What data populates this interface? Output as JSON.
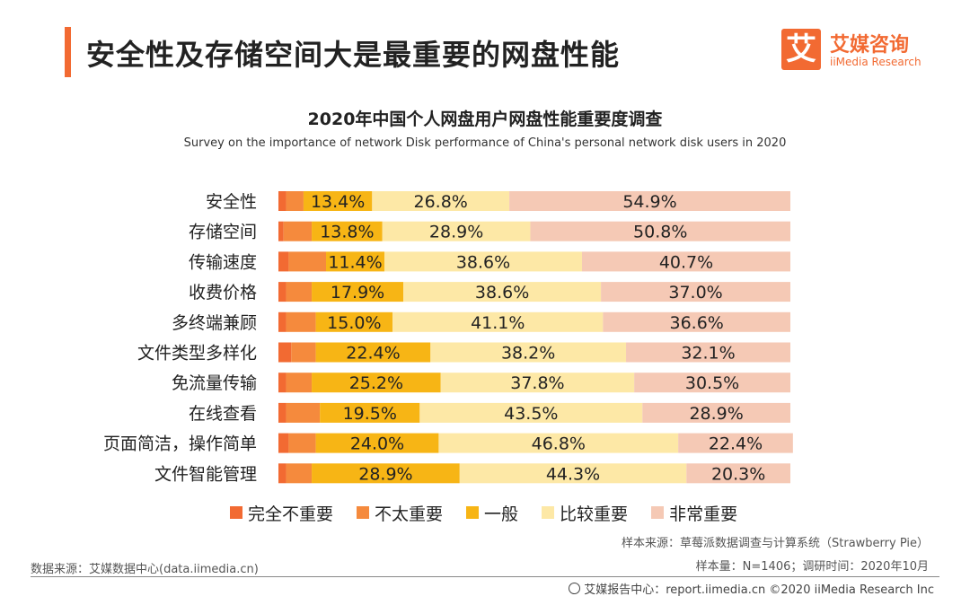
{
  "header": {
    "title": "安全性及存储空间大是最重要的网盘性能",
    "logo_mark": "艾",
    "logo_cn": "艾媒咨询",
    "logo_en": "iiMedia Research"
  },
  "colors": {
    "accent": "#f26a32",
    "完全不重要": "#f26a32",
    "不太重要": "#f58a3d",
    "一般": "#f7b515",
    "比较重要": "#fde8a6",
    "非常重要": "#f5c9b5"
  },
  "chart_data": {
    "type": "bar",
    "orientation": "horizontal",
    "stacked": true,
    "title": "2020年中国个人网盘用户网盘性能重要度调查",
    "subtitle": "Survey on the importance of network Disk performance of China's personal network disk users in 2020",
    "categories": [
      "安全性",
      "存储空间",
      "传输速度",
      "收费价格",
      "多终端兼顾",
      "文件类型多样化",
      "免流量传输",
      "在线查看",
      "页面简洁，操作简单",
      "文件智能管理"
    ],
    "series": [
      {
        "name": "完全不重要",
        "values": [
          1.5,
          1.0,
          2.0,
          1.5,
          1.5,
          2.5,
          1.5,
          1.5,
          2.0,
          1.5
        ]
      },
      {
        "name": "不太重要",
        "values": [
          3.4,
          5.5,
          7.3,
          5.0,
          5.8,
          4.8,
          5.0,
          6.6,
          5.3,
          5.0
        ]
      },
      {
        "name": "一般",
        "values": [
          13.4,
          13.8,
          11.4,
          17.9,
          15.0,
          22.4,
          25.2,
          19.5,
          24.0,
          28.9
        ]
      },
      {
        "name": "比较重要",
        "values": [
          26.8,
          28.9,
          38.6,
          38.6,
          41.1,
          38.2,
          37.8,
          43.5,
          46.8,
          44.3
        ]
      },
      {
        "name": "非常重要",
        "values": [
          54.9,
          50.8,
          40.7,
          37.0,
          36.6,
          32.1,
          30.5,
          28.9,
          22.4,
          20.3
        ]
      }
    ],
    "labels": {
      "一般": [
        "13.4%",
        "13.8%",
        "11.4%",
        "17.9%",
        "15.0%",
        "22.4%",
        "25.2%",
        "19.5%",
        "24.0%",
        "28.9%"
      ],
      "比较重要": [
        "26.8%",
        "28.9%",
        "38.6%",
        "38.6%",
        "41.1%",
        "38.2%",
        "37.8%",
        "43.5%",
        "46.8%",
        "44.3%"
      ],
      "非常重要": [
        "54.9%",
        "50.8%",
        "40.7%",
        "37.0%",
        "36.6%",
        "32.1%",
        "30.5%",
        "28.9%",
        "22.4%",
        "20.3%"
      ]
    },
    "legend_position": "bottom",
    "grid": false
  },
  "legend": [
    "完全不重要",
    "不太重要",
    "一般",
    "比较重要",
    "非常重要"
  ],
  "footer": {
    "sample_source": "样本来源：草莓派数据调查与计算系统（Strawberry Pie）",
    "sample_size": "样本量：N=1406；调研时间：2020年10月",
    "data_source": "数据来源：艾媒数据中心(data.iimedia.cn)",
    "report": "艾媒报告中心：report.iimedia.cn   ©2020  iiMedia Research  Inc"
  }
}
